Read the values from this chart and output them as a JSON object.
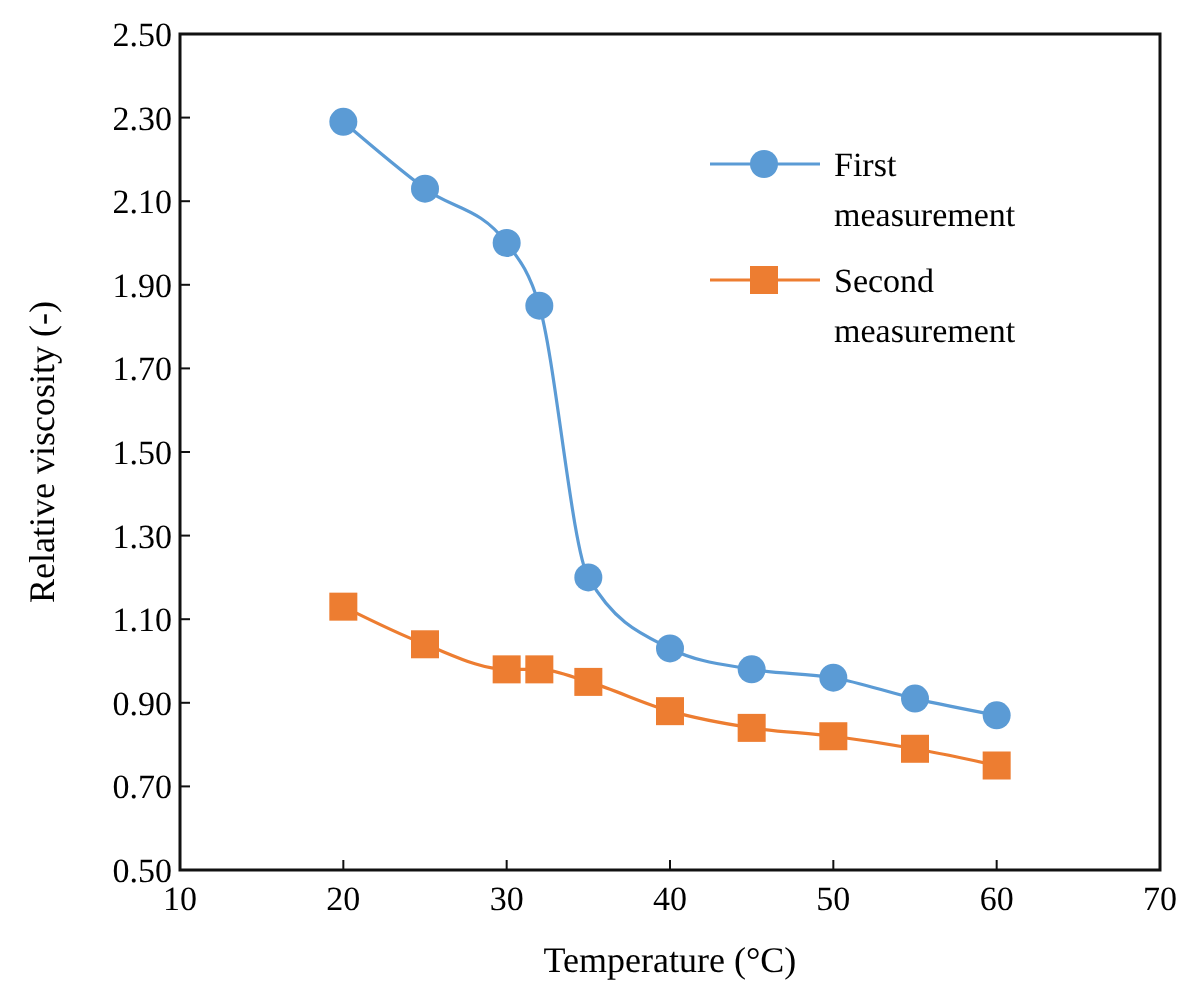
{
  "chart_data": {
    "type": "line",
    "xlabel": "Temperature (°C)",
    "ylabel": "Relative viscosity (-)",
    "xlim": [
      10,
      70
    ],
    "xticks": [
      10,
      20,
      30,
      40,
      50,
      60,
      70
    ],
    "ylim": [
      0.5,
      2.5
    ],
    "yticks": [
      {
        "value": 0.5,
        "label": "0.50"
      },
      {
        "value": 0.7,
        "label": "0.70"
      },
      {
        "value": 0.9,
        "label": "0.90"
      },
      {
        "value": 1.1,
        "label": "1.10"
      },
      {
        "value": 1.3,
        "label": "1.30"
      },
      {
        "value": 1.5,
        "label": "1.50"
      },
      {
        "value": 1.7,
        "label": "1.70"
      },
      {
        "value": 1.9,
        "label": "1.90"
      },
      {
        "value": 2.1,
        "label": "2.10"
      },
      {
        "value": 2.3,
        "label": "2.30"
      },
      {
        "value": 2.5,
        "label": "2.50"
      }
    ],
    "x": [
      20,
      25,
      30,
      32,
      35,
      40,
      45,
      50,
      55,
      60
    ],
    "grid": false,
    "legend": "top right",
    "series": [
      {
        "name": "First measurement",
        "color": "#5b9bd5",
        "marker": "circle",
        "values": [
          2.29,
          2.13,
          2.0,
          1.85,
          1.2,
          1.03,
          0.98,
          0.96,
          0.91,
          0.87
        ]
      },
      {
        "name": "Second measurement",
        "color": "#ed7d31",
        "marker": "square",
        "values": [
          1.13,
          1.04,
          0.98,
          0.98,
          0.95,
          0.88,
          0.84,
          0.82,
          0.79,
          0.75
        ]
      }
    ]
  }
}
